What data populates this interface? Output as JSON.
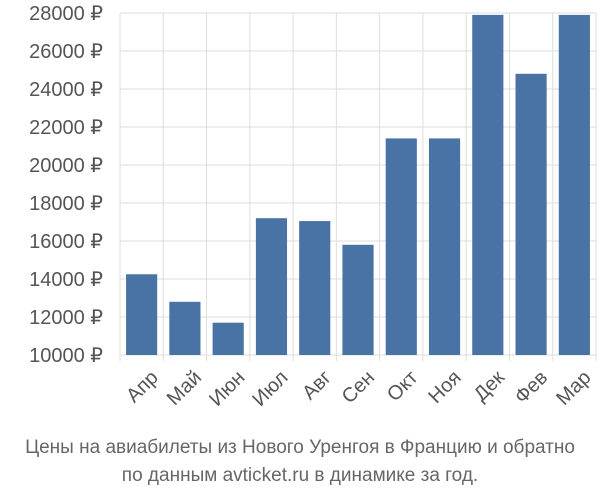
{
  "chart_data": {
    "type": "bar",
    "categories": [
      "Апр",
      "Май",
      "Июн",
      "Июл",
      "Авг",
      "Сен",
      "Окт",
      "Ноя",
      "Дек",
      "Фев",
      "Мар"
    ],
    "values": [
      14250,
      12800,
      11700,
      17200,
      17050,
      15800,
      21400,
      21400,
      27900,
      24800,
      27900
    ],
    "ylim": [
      10000,
      28000
    ],
    "yticks": [
      10000,
      12000,
      14000,
      16000,
      18000,
      20000,
      22000,
      24000,
      26000,
      28000
    ],
    "ytick_labels": [
      "10000 ₽",
      "12000 ₽",
      "14000 ₽",
      "16000 ₽",
      "18000 ₽",
      "20000 ₽",
      "22000 ₽",
      "24000 ₽",
      "26000 ₽",
      "28000 ₽"
    ],
    "grid": true,
    "bar_color": "#4a73a5"
  },
  "caption": {
    "line1": "Цены на авиабилеты из Нового Уренгоя в Францию и обратно",
    "line2": "по данным avticket.ru в динамике за год."
  }
}
